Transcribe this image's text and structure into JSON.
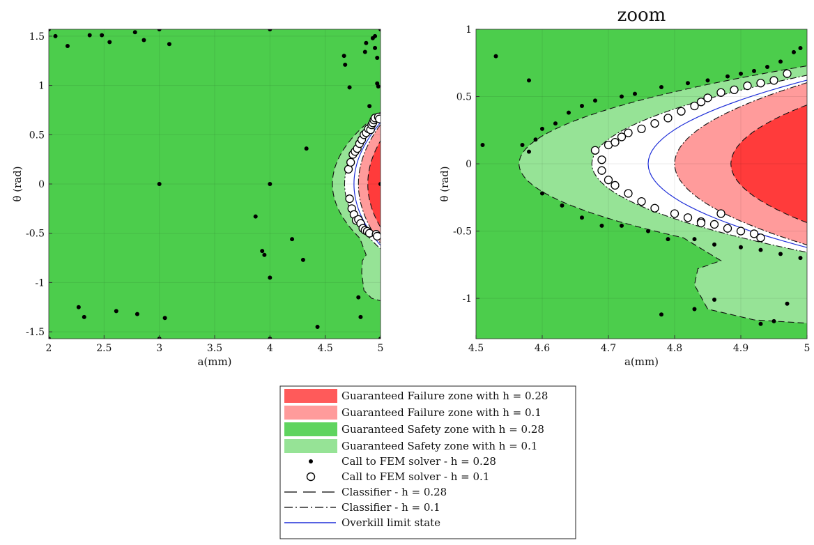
{
  "chart_data": [
    {
      "type": "scatter",
      "title": "",
      "xlabel": "a(mm)",
      "ylabel": "θ (rad)",
      "xlim": [
        2,
        5
      ],
      "ylim": [
        -1.57,
        1.57
      ],
      "xticks": [
        "2",
        "2.5",
        "3",
        "3.5",
        "4",
        "4.5",
        "5"
      ],
      "yticks": [
        "1.5",
        "1",
        "0.5",
        "0",
        "-0.5",
        "-1",
        "-1.5"
      ],
      "xtick_values": [
        2,
        2.5,
        3,
        3.5,
        4,
        4.5,
        5
      ],
      "ytick_values": [
        1.5,
        1,
        0.5,
        0,
        -0.5,
        -1,
        -1.5
      ],
      "series": [
        {
          "name": "Call to FEM solver - h = 0.28",
          "x": [
            2.0,
            2.0,
            2.06,
            2.17,
            2.27,
            2.32,
            2.37,
            2.48,
            2.55,
            2.61,
            2.78,
            2.8,
            2.86,
            3.0,
            3.0,
            3.0,
            3.05,
            3.09,
            3.87,
            3.93,
            3.95,
            4.0,
            4.0,
            4.0,
            4.0,
            4.2,
            4.3,
            4.33,
            4.43,
            4.67,
            4.68,
            4.72,
            4.8,
            4.82,
            4.86,
            4.87,
            4.9,
            4.93,
            4.95,
            4.95,
            4.97,
            4.97,
            4.98,
            5.0,
            5.0,
            5.0
          ],
          "y": [
            1.57,
            -1.57,
            1.5,
            1.4,
            -1.25,
            -1.35,
            1.51,
            1.51,
            1.44,
            -1.29,
            1.54,
            -1.32,
            1.46,
            1.57,
            0.0,
            -1.57,
            -1.36,
            1.42,
            -0.33,
            -0.68,
            -0.72,
            1.57,
            0.0,
            -0.95,
            -1.57,
            -0.56,
            -0.77,
            0.36,
            -1.45,
            1.3,
            1.21,
            0.98,
            -1.15,
            -1.35,
            1.34,
            1.43,
            0.79,
            1.48,
            1.5,
            1.38,
            1.28,
            1.02,
            0.99,
            1.57,
            0.0,
            -1.57
          ]
        },
        {
          "name": "Call to FEM solver - h = 0.1",
          "x": [
            4.71,
            4.72,
            4.73,
            4.74,
            4.75,
            4.76,
            4.77,
            4.78,
            4.79,
            4.8,
            4.81,
            4.82,
            4.83,
            4.84,
            4.85,
            4.86,
            4.87,
            4.88,
            4.89,
            4.9,
            4.91,
            4.92,
            4.93,
            4.94,
            4.95,
            4.96,
            4.97,
            4.98,
            4.99
          ],
          "y": [
            0.15,
            -0.15,
            0.22,
            -0.25,
            0.3,
            -0.31,
            0.33,
            -0.37,
            0.36,
            -0.36,
            0.41,
            -0.4,
            0.45,
            -0.45,
            0.5,
            -0.47,
            0.52,
            -0.48,
            0.56,
            -0.5,
            0.55,
            0.6,
            0.62,
            0.65,
            0.67,
            -0.51,
            -0.53,
            0.68,
            0.66
          ]
        }
      ],
      "zones": {
        "failure_h028_color": "#ff3b3b",
        "failure_h01_color": "#ff9b9b",
        "safety_h028_color": "#4ccd4c",
        "safety_h01_color": "#96e396",
        "overkill_color": "#1f2fd8"
      },
      "grid": true,
      "legend": "none"
    },
    {
      "type": "scatter",
      "title": "zoom",
      "xlabel": "a(mm)",
      "ylabel": "θ (rad)",
      "xlim": [
        4.5,
        5
      ],
      "ylim": [
        -1.3,
        1
      ],
      "xticks": [
        "4.5",
        "4.6",
        "4.7",
        "4.8",
        "4.9",
        "5"
      ],
      "yticks": [
        "1",
        "0.5",
        "0",
        "-0.5",
        "-1"
      ],
      "xtick_values": [
        4.5,
        4.6,
        4.7,
        4.8,
        4.9,
        5
      ],
      "ytick_values": [
        1,
        0.5,
        0,
        -0.5,
        -1
      ],
      "series": [
        {
          "name": "Call to FEM solver - h = 0.28",
          "x": [
            4.51,
            4.53,
            4.58,
            4.57,
            4.58,
            4.59,
            4.6,
            4.62,
            4.64,
            4.66,
            4.68,
            4.72,
            4.74,
            4.78,
            4.82,
            4.85,
            4.88,
            4.9,
            4.92,
            4.94,
            4.96,
            4.98,
            4.99,
            4.6,
            4.63,
            4.66,
            4.69,
            4.72,
            4.76,
            4.79,
            4.83,
            4.86,
            4.9,
            4.93,
            4.96,
            4.99,
            4.78,
            4.83,
            4.86,
            4.93,
            4.95,
            4.97
          ],
          "y": [
            0.14,
            0.8,
            0.62,
            0.14,
            0.09,
            0.18,
            0.26,
            0.3,
            0.38,
            0.43,
            0.47,
            0.5,
            0.52,
            0.57,
            0.6,
            0.62,
            0.65,
            0.67,
            0.69,
            0.72,
            0.76,
            0.83,
            0.86,
            -0.22,
            -0.31,
            -0.4,
            -0.46,
            -0.46,
            -0.5,
            -0.56,
            -0.56,
            -0.6,
            -0.62,
            -0.64,
            -0.67,
            -0.7,
            -1.12,
            -1.08,
            -1.01,
            -1.19,
            -1.17,
            -1.04
          ]
        },
        {
          "name": "Call to FEM solver - h = 0.1",
          "x": [
            4.68,
            4.69,
            4.7,
            4.71,
            4.72,
            4.73,
            4.75,
            4.77,
            4.79,
            4.81,
            4.83,
            4.84,
            4.85,
            4.87,
            4.89,
            4.91,
            4.93,
            4.95,
            4.97,
            4.69,
            4.7,
            4.71,
            4.73,
            4.75,
            4.77,
            4.8,
            4.82,
            4.84,
            4.86,
            4.88,
            4.9,
            4.92,
            4.93,
            4.87,
            4.84
          ],
          "y": [
            0.1,
            0.03,
            0.14,
            0.16,
            0.2,
            0.23,
            0.26,
            0.3,
            0.34,
            0.39,
            0.43,
            0.46,
            0.49,
            0.53,
            0.55,
            0.58,
            0.6,
            0.62,
            0.67,
            -0.05,
            -0.12,
            -0.16,
            -0.22,
            -0.28,
            -0.33,
            -0.37,
            -0.4,
            -0.43,
            -0.45,
            -0.48,
            -0.5,
            -0.52,
            -0.55,
            -0.37,
            -0.44
          ]
        }
      ],
      "zones": {
        "failure_h028_color": "#ff3b3b",
        "failure_h01_color": "#ff9b9b",
        "safety_h028_color": "#4ccd4c",
        "safety_h01_color": "#96e396",
        "overkill_color": "#1f2fd8"
      },
      "grid": true,
      "legend": "bottom-center"
    }
  ],
  "legend": {
    "items": [
      {
        "label": "Guaranteed Failure zone with h = 0.28",
        "symbol": "patch",
        "color": "#ff5a5a"
      },
      {
        "label": "Guaranteed Failure zone with h = 0.1",
        "symbol": "patch",
        "color": "#ff9b9b"
      },
      {
        "label": "Guaranteed Safety zone with h = 0.28",
        "symbol": "patch",
        "color": "#5fd45f"
      },
      {
        "label": "Guaranteed Safety zone with h = 0.1",
        "symbol": "patch",
        "color": "#96e396"
      },
      {
        "label": "Call to FEM solver - h = 0.28",
        "symbol": "dot",
        "color": "#000000"
      },
      {
        "label": "Call to FEM solver - h = 0.1",
        "symbol": "circle",
        "color": "#000000"
      },
      {
        "label": "Classifier - h = 0.28",
        "symbol": "dashed",
        "color": "#000000"
      },
      {
        "label": "Classifier - h = 0.1",
        "symbol": "dashdot",
        "color": "#000000"
      },
      {
        "label": "Overkill limit state",
        "symbol": "line",
        "color": "#1f2fd8"
      }
    ]
  }
}
